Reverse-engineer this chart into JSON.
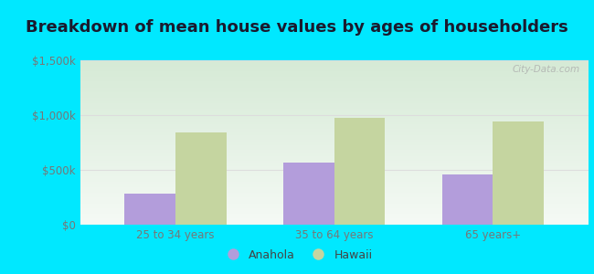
{
  "title": "Breakdown of mean house values by ages of householders",
  "categories": [
    "25 to 34 years",
    "35 to 64 years",
    "65 years+"
  ],
  "anahola_values": [
    285000,
    565000,
    455000
  ],
  "hawaii_values": [
    840000,
    975000,
    945000
  ],
  "anahola_color": "#b39ddb",
  "hawaii_color": "#c5d5a0",
  "ylim": [
    0,
    1500000
  ],
  "yticks": [
    0,
    500000,
    1000000,
    1500000
  ],
  "ytick_labels": [
    "$0",
    "$500k",
    "$1,000k",
    "$1,500k"
  ],
  "legend_labels": [
    "Anahola",
    "Hawaii"
  ],
  "background_outer": "#00e8ff",
  "gradient_top": "#d6ead6",
  "gradient_bottom": "#f5faf5",
  "watermark": "City-Data.com",
  "title_fontsize": 13,
  "bar_width": 0.32,
  "tick_color": "#777777",
  "tick_fontsize": 8.5
}
